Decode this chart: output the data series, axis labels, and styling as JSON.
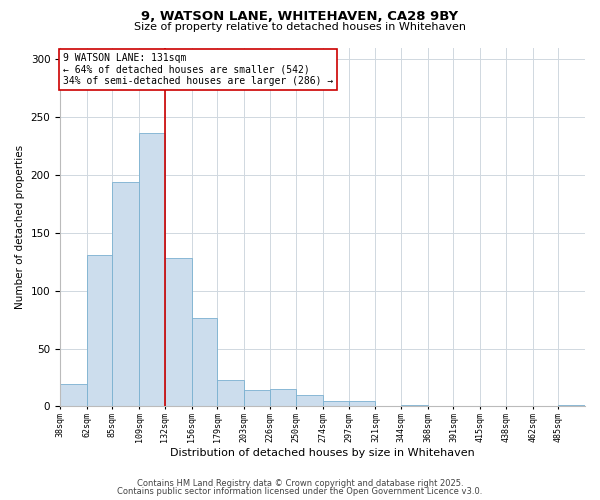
{
  "title": "9, WATSON LANE, WHITEHAVEN, CA28 9BY",
  "subtitle": "Size of property relative to detached houses in Whitehaven",
  "xlabel": "Distribution of detached houses by size in Whitehaven",
  "ylabel": "Number of detached properties",
  "bar_color": "#ccdded",
  "bar_edge_color": "#7ab0d0",
  "background_color": "#ffffff",
  "grid_color": "#d0d8e0",
  "bins": [
    38,
    62,
    85,
    109,
    132,
    156,
    179,
    203,
    226,
    250,
    274,
    297,
    321,
    344,
    368,
    391,
    415,
    438,
    462,
    485,
    509
  ],
  "counts": [
    19,
    131,
    194,
    236,
    128,
    76,
    23,
    14,
    15,
    10,
    5,
    5,
    0,
    1,
    0,
    0,
    0,
    0,
    0,
    1
  ],
  "vline_x": 132,
  "vline_color": "#cc0000",
  "annotation_title": "9 WATSON LANE: 131sqm",
  "annotation_line1": "← 64% of detached houses are smaller (542)",
  "annotation_line2": "34% of semi-detached houses are larger (286) →",
  "annotation_box_color": "#ffffff",
  "annotation_box_edge_color": "#cc0000",
  "ylim": [
    0,
    310
  ],
  "yticks": [
    0,
    50,
    100,
    150,
    200,
    250,
    300
  ],
  "footnote1": "Contains HM Land Registry data © Crown copyright and database right 2025.",
  "footnote2": "Contains public sector information licensed under the Open Government Licence v3.0."
}
